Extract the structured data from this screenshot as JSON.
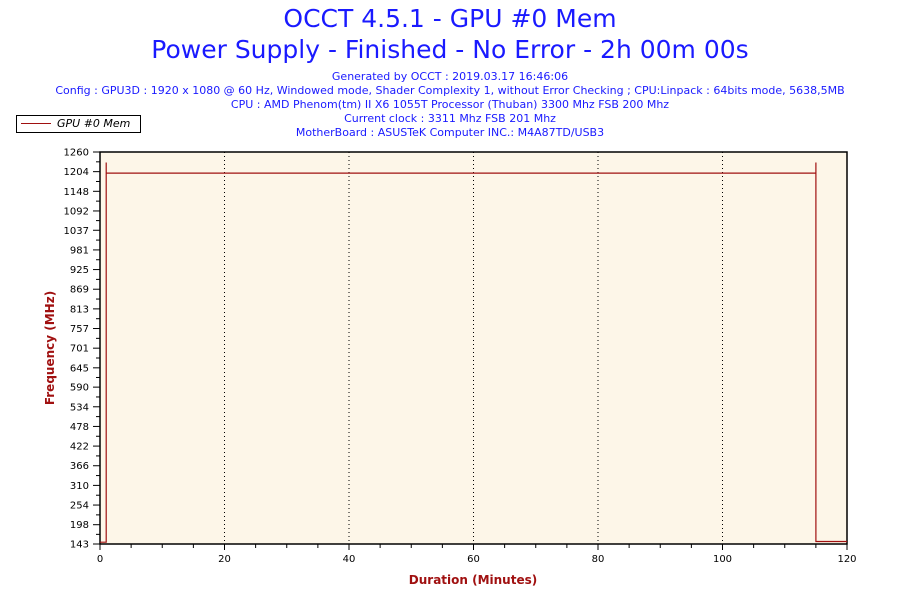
{
  "chart_data": {
    "type": "line",
    "title": "OCCT 4.5.1 - GPU #0 Mem",
    "subtitle": "Power Supply - Finished - No Error - 2h 00m 00s",
    "info_lines": [
      "Generated by OCCT : 2019.03.17 16:46:06",
      "Config : GPU3D : 1920 x 1080 @ 60 Hz, Windowed mode, Shader Complexity 1, without Error Checking ; CPU:Linpack : 64bits mode, 5638,5MB",
      "CPU : AMD Phenom(tm) II X6 1055T Processor (Thuban) 3300 Mhz FSB 200 Mhz",
      "Current clock : 3311 Mhz FSB 201 Mhz",
      "MotherBoard : ASUSTeK Computer INC.: M4A87TD/USB3"
    ],
    "xlabel": "Duration (Minutes)",
    "ylabel": "Frequency (MHz)",
    "xlim": [
      0,
      120
    ],
    "ylim": [
      143,
      1260
    ],
    "x_ticks": [
      0,
      20,
      40,
      60,
      80,
      100,
      120
    ],
    "y_ticks": [
      143,
      198,
      254,
      310,
      366,
      422,
      478,
      534,
      590,
      645,
      701,
      757,
      813,
      869,
      925,
      981,
      1037,
      1092,
      1148,
      1204,
      1260
    ],
    "grid": "vertical dotted",
    "legend_position": "top-left",
    "series": [
      {
        "name": "GPU #0 Mem",
        "color": "#a01010",
        "x": [
          0,
          1,
          1,
          1,
          115,
          115,
          115,
          120
        ],
        "y": [
          148,
          148,
          1230,
          1200,
          1200,
          1230,
          150,
          150
        ]
      }
    ]
  },
  "colors": {
    "title": "#1a1aff",
    "plot_bg": "#fdf6e8",
    "axis_label": "#a01010"
  }
}
